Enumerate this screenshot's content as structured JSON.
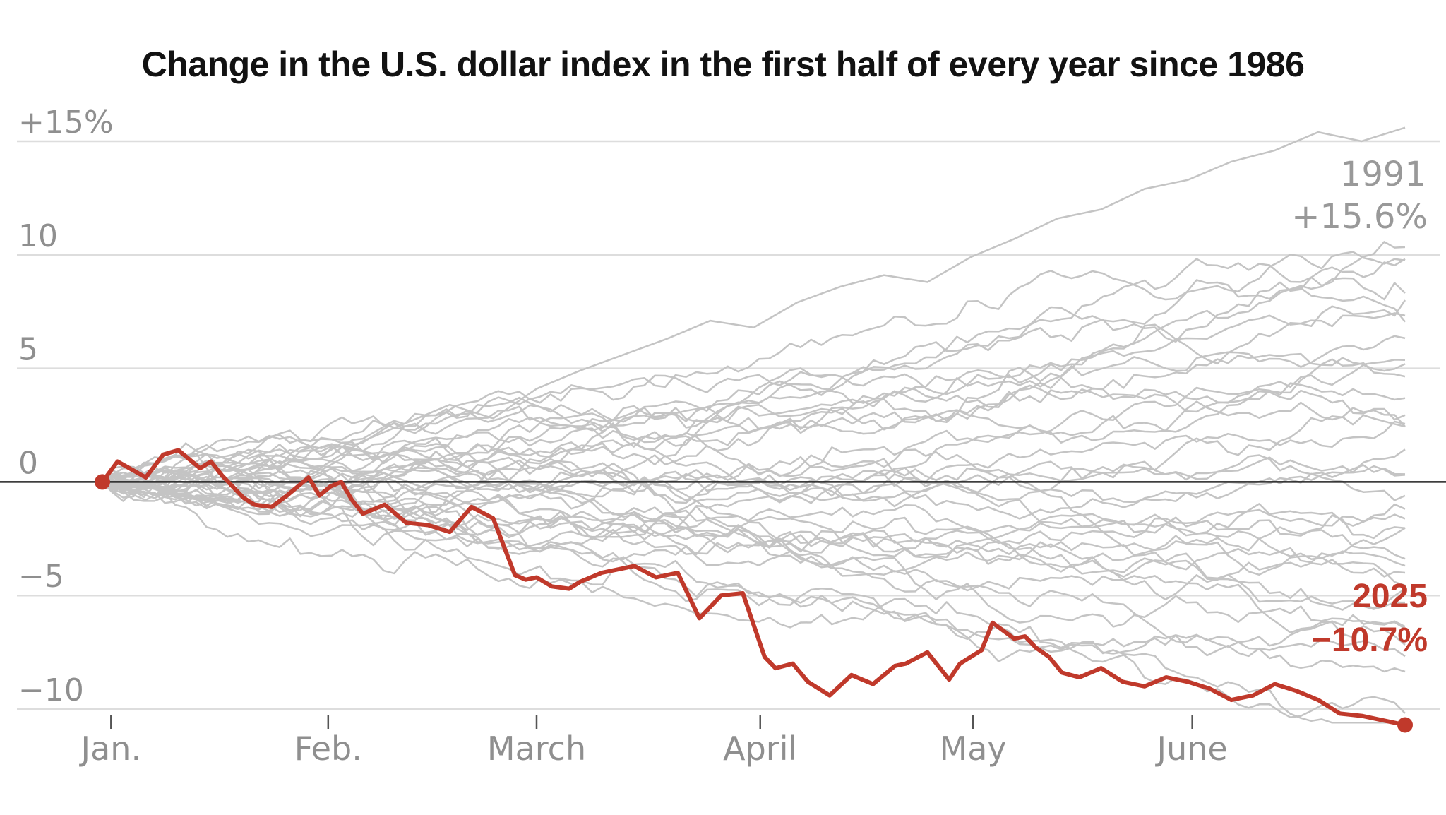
{
  "chart_data": {
    "type": "line",
    "title": "Change in the U.S. dollar index in the first half of every year since 1986",
    "x_unit": "month",
    "xlim": [
      0,
      6
    ],
    "x_tick_labels": [
      "Jan.",
      "Feb.",
      "March",
      "April",
      "May",
      "June"
    ],
    "x_ticks": [
      0.04,
      1.04,
      2.0,
      3.03,
      4.01,
      5.02
    ],
    "ylim": [
      -10.5,
      16.5
    ],
    "y_ticks": [
      15,
      10,
      5,
      0,
      -5,
      -10
    ],
    "y_tick_labels": [
      "+15%",
      "10",
      "5",
      "0",
      "−5",
      "−10"
    ],
    "grid": true,
    "zero_line": true,
    "highlight_series": {
      "name": "2025",
      "color": "#c0392b",
      "end_label": "2025",
      "end_value_label": "−10.7%",
      "x": [
        0,
        0.07,
        0.2,
        0.28,
        0.35,
        0.45,
        0.5,
        0.55,
        0.65,
        0.7,
        0.78,
        0.85,
        0.95,
        1.0,
        1.05,
        1.1,
        1.15,
        1.2,
        1.25,
        1.3,
        1.4,
        1.5,
        1.6,
        1.7,
        1.8,
        1.9,
        1.95,
        2.0,
        2.07,
        2.15,
        2.2,
        2.3,
        2.45,
        2.55,
        2.65,
        2.75,
        2.85,
        2.95,
        3.05,
        3.1,
        3.18,
        3.25,
        3.35,
        3.45,
        3.55,
        3.65,
        3.7,
        3.8,
        3.9,
        3.95,
        4.05,
        4.1,
        4.2,
        4.25,
        4.3,
        4.36,
        4.42,
        4.5,
        4.6,
        4.7,
        4.8,
        4.9,
        5.0,
        5.1,
        5.2,
        5.3,
        5.4,
        5.5,
        5.6,
        5.7,
        5.8,
        5.9,
        6.0
      ],
      "y": [
        0,
        0.9,
        0.2,
        1.2,
        1.4,
        0.6,
        0.9,
        0.3,
        -0.7,
        -1.0,
        -1.1,
        -0.6,
        0.2,
        -0.6,
        -0.2,
        0.0,
        -0.8,
        -1.4,
        -1.2,
        -1.0,
        -1.8,
        -1.9,
        -2.2,
        -1.1,
        -1.6,
        -4.1,
        -4.3,
        -4.2,
        -4.6,
        -4.7,
        -4.4,
        -4.0,
        -3.7,
        -4.2,
        -4.0,
        -6.0,
        -5.0,
        -4.9,
        -7.7,
        -8.2,
        -8.0,
        -8.8,
        -9.4,
        -8.5,
        -8.9,
        -8.1,
        -8.0,
        -7.5,
        -8.7,
        -8.0,
        -7.4,
        -6.2,
        -6.9,
        -6.8,
        -7.3,
        -7.7,
        -8.4,
        -8.6,
        -8.2,
        -8.8,
        -9.0,
        -8.6,
        -8.8,
        -9.1,
        -9.6,
        -9.4,
        -8.9,
        -9.2,
        -9.6,
        -10.2,
        -10.3,
        -10.5,
        -10.7
      ]
    },
    "annotation_1991": {
      "year_label": "1991",
      "value_label": "+15.6%",
      "color": "#999999",
      "x": [
        0,
        0.2,
        0.4,
        0.6,
        0.8,
        1.0,
        1.2,
        1.4,
        1.6,
        1.8,
        2.0,
        2.2,
        2.4,
        2.6,
        2.8,
        3.0,
        3.2,
        3.4,
        3.6,
        3.8,
        4.0,
        4.2,
        4.4,
        4.6,
        4.8,
        5.0,
        5.2,
        5.4,
        5.6,
        5.8,
        6.0
      ],
      "y": [
        0,
        -0.8,
        0.3,
        -0.4,
        1.2,
        0.6,
        1.8,
        2.6,
        3.4,
        2.8,
        4.1,
        4.9,
        5.6,
        6.3,
        7.1,
        6.8,
        7.9,
        8.6,
        9.1,
        8.8,
        9.9,
        10.7,
        11.6,
        12.0,
        12.9,
        13.3,
        14.1,
        14.6,
        15.4,
        15.0,
        15.6
      ]
    },
    "background_series_note": "One grey line per year since 1986"
  },
  "colors": {
    "grid": "#dddddd",
    "gray_lines": "#c4c4c4",
    "highlight": "#c0392b",
    "labels": "#8f8f8f",
    "zero_line": "#222222"
  }
}
